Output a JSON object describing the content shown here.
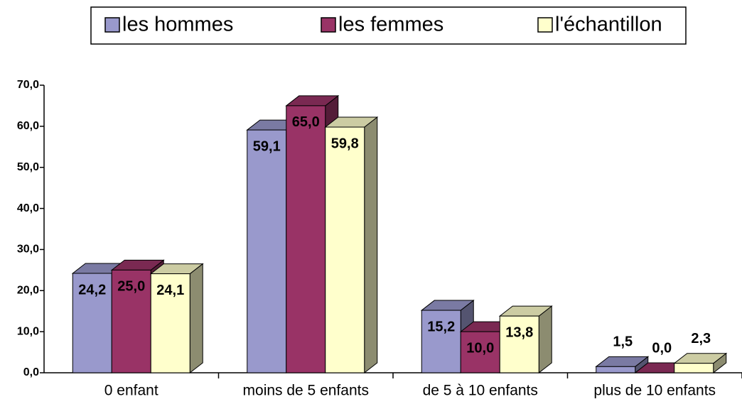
{
  "chart_data": {
    "type": "bar3d",
    "categories": [
      "0 enfant",
      "moins de 5 enfants",
      "de 5 à 10 enfants",
      "plus de 10 enfants"
    ],
    "series": [
      {
        "name": "les hommes",
        "color": "#9999cc",
        "values": [
          24.2,
          59.1,
          15.2,
          1.5
        ],
        "value_labels": [
          "24,2",
          "59,1",
          "15,2",
          "1,5"
        ]
      },
      {
        "name": "les femmes",
        "color": "#993366",
        "values": [
          25.0,
          65.0,
          10.0,
          0.0
        ],
        "value_labels": [
          "25,0",
          "65,0",
          "10,0",
          "0,0"
        ]
      },
      {
        "name": "l'échantillon",
        "color": "#ffffcc",
        "values": [
          24.1,
          59.8,
          13.8,
          2.3
        ],
        "value_labels": [
          "24,1",
          "59,8",
          "13,8",
          "2,3"
        ]
      }
    ],
    "ylim": [
      0,
      70
    ],
    "yticks": [
      {
        "value": 0,
        "label": "0,0"
      },
      {
        "value": 10,
        "label": "10,0"
      },
      {
        "value": 20,
        "label": "20,0"
      },
      {
        "value": 30,
        "label": "30,0"
      },
      {
        "value": 40,
        "label": "40,0"
      },
      {
        "value": 50,
        "label": "50,0"
      },
      {
        "value": 60,
        "label": "60,0"
      },
      {
        "value": 70,
        "label": "70,0"
      }
    ],
    "legend": "top"
  }
}
